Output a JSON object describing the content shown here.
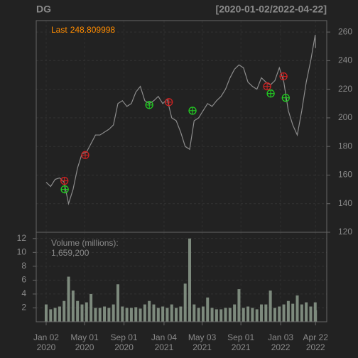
{
  "chart_data": [
    {
      "type": "line",
      "title": "DG",
      "subtitle": "[2020-01-02/2022-04-22]",
      "last_prefix": "Last",
      "last_value": 248.809998,
      "last_color": "#ff8c00",
      "x": [
        "2020-01-02",
        "2020-01-16",
        "2020-01-30",
        "2020-02-13",
        "2020-02-27",
        "2020-03-12",
        "2020-03-26",
        "2020-04-09",
        "2020-04-23",
        "2020-05-07",
        "2020-05-21",
        "2020-06-04",
        "2020-06-18",
        "2020-07-02",
        "2020-07-16",
        "2020-07-30",
        "2020-08-13",
        "2020-08-27",
        "2020-09-10",
        "2020-09-24",
        "2020-10-08",
        "2020-10-22",
        "2020-11-05",
        "2020-11-19",
        "2020-12-03",
        "2020-12-17",
        "2020-12-31",
        "2021-01-14",
        "2021-01-28",
        "2021-02-11",
        "2021-02-25",
        "2021-03-11",
        "2021-03-25",
        "2021-04-08",
        "2021-04-22",
        "2021-05-06",
        "2021-05-20",
        "2021-06-03",
        "2021-06-17",
        "2021-07-01",
        "2021-07-15",
        "2021-07-29",
        "2021-08-12",
        "2021-08-26",
        "2021-09-09",
        "2021-09-23",
        "2021-10-07",
        "2021-10-21",
        "2021-11-04",
        "2021-11-18",
        "2021-12-02",
        "2021-12-16",
        "2021-12-30",
        "2022-01-13",
        "2022-01-27",
        "2022-02-10",
        "2022-02-24",
        "2022-03-10",
        "2022-03-24",
        "2022-04-07",
        "2022-04-21",
        "2022-04-22"
      ],
      "series": [
        {
          "color": "#8c8c8c",
          "values": [
            155,
            152,
            157,
            158,
            155,
            140,
            150,
            165,
            175,
            176,
            182,
            188,
            188,
            190,
            192,
            195,
            210,
            212,
            208,
            210,
            218,
            222,
            212,
            210,
            212,
            215,
            210,
            213,
            200,
            198,
            190,
            180,
            178,
            198,
            200,
            205,
            210,
            208,
            212,
            215,
            220,
            228,
            234,
            237,
            235,
            225,
            222,
            220,
            228,
            225,
            223,
            226,
            235,
            225,
            205,
            195,
            188,
            205,
            225,
            240,
            258,
            248.809998
          ]
        }
      ],
      "markers": {
        "buy": {
          "color": "#22cc22",
          "x": [
            "2020-02-29",
            "2020-11-19",
            "2021-04-03",
            "2021-12-03",
            "2022-01-19"
          ],
          "values": [
            150,
            209,
            205,
            217,
            214
          ]
        },
        "sell": {
          "color": "#cc2222",
          "x": [
            "2020-02-28",
            "2020-05-03",
            "2021-01-19",
            "2021-11-22",
            "2022-01-12"
          ],
          "values": [
            156,
            174,
            211,
            222,
            229
          ]
        }
      },
      "xlim": [
        "2019-12-02",
        "2022-05-27"
      ],
      "xticks": [
        {
          "value": "2020-01-02",
          "label": "Jan 02",
          "sublabel": "2020"
        },
        {
          "value": "2020-05-01",
          "label": "May 01",
          "sublabel": "2020"
        },
        {
          "value": "2020-09-01",
          "label": "Sep 01",
          "sublabel": "2020"
        },
        {
          "value": "2021-01-04",
          "label": "Jan 04",
          "sublabel": "2021"
        },
        {
          "value": "2021-05-03",
          "label": "May 03",
          "sublabel": "2021"
        },
        {
          "value": "2021-09-01",
          "label": "Sep 01",
          "sublabel": "2021"
        },
        {
          "value": "2022-01-03",
          "label": "Jan 03",
          "sublabel": "2022"
        },
        {
          "value": "2022-04-22",
          "label": "Apr 22",
          "sublabel": "2022"
        }
      ],
      "ylim": [
        120,
        268
      ],
      "yticks": [
        120,
        140,
        160,
        180,
        200,
        220,
        240,
        260
      ],
      "grid": true
    },
    {
      "type": "bar",
      "label": "Volume (millions):",
      "last_label": "1,659,200",
      "last_color": "#ff8c00",
      "color": "#7d8a7d",
      "values": [
        2.5,
        1.8,
        2.0,
        2.2,
        3.0,
        6.5,
        4.5,
        3.0,
        2.5,
        2.8,
        4.0,
        2.0,
        2.0,
        2.2,
        2.0,
        2.5,
        5.4,
        2.2,
        2.0,
        2.0,
        2.1,
        1.9,
        2.5,
        3.0,
        2.5,
        2.0,
        2.2,
        2.0,
        2.5,
        2.0,
        2.2,
        5.5,
        12.0,
        2.5,
        2.0,
        2.2,
        3.5,
        2.0,
        1.8,
        1.8,
        2.0,
        2.0,
        2.5,
        4.7,
        2.0,
        2.2,
        2.0,
        1.8,
        2.5,
        2.5,
        4.5,
        2.0,
        2.2,
        2.5,
        3.0,
        2.6,
        3.8,
        2.5,
        2.8,
        2.2,
        2.8,
        1.6592
      ],
      "ylim": [
        0,
        12.9
      ],
      "yticks": [
        2,
        4,
        6,
        8,
        10,
        12
      ],
      "grid": true
    }
  ]
}
